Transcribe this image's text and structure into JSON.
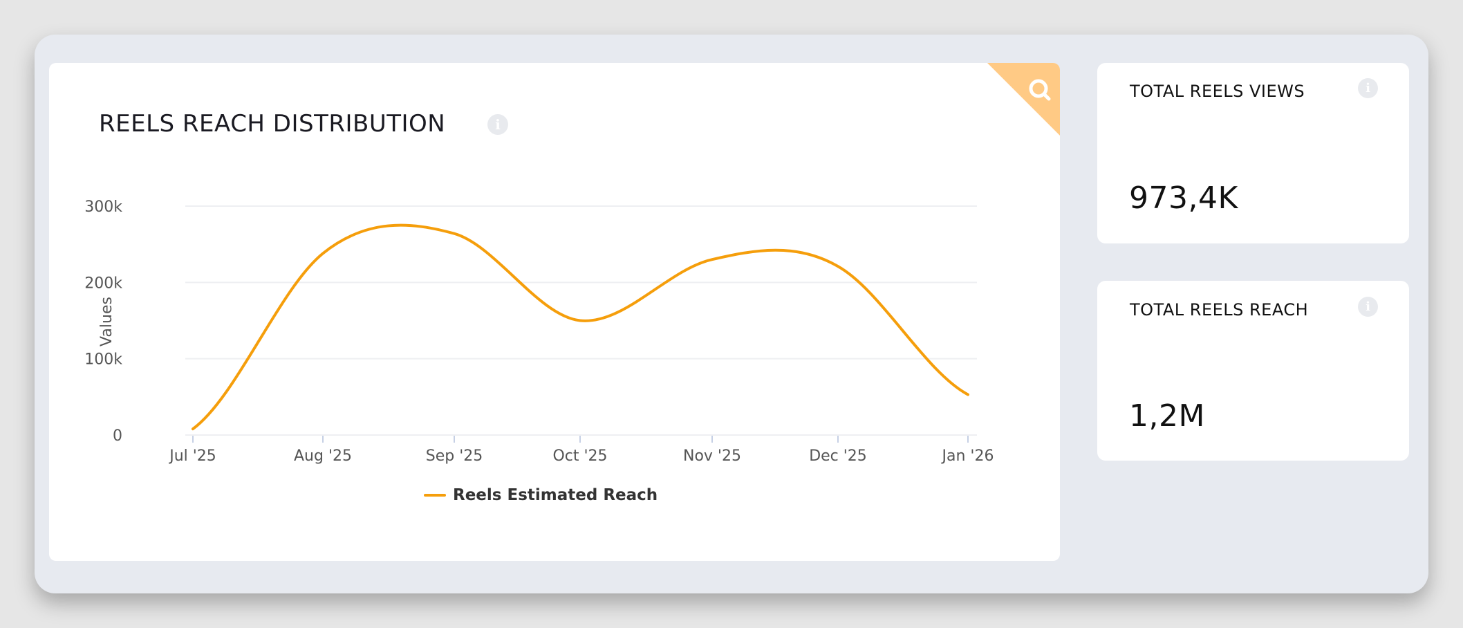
{
  "chart_card": {
    "title": "REELS REACH DISTRIBUTION",
    "info_glyph": "i",
    "corner_icon": "search-icon",
    "corner_color": "#ffca85"
  },
  "stats": [
    {
      "label": "TOTAL REELS VIEWS",
      "value": "973,4K",
      "info_glyph": "i"
    },
    {
      "label": "TOTAL REELS REACH",
      "value": "1,2M",
      "info_glyph": "i"
    }
  ],
  "colors": {
    "series": "#f59e0b",
    "grid": "#eeeff2",
    "tick": "#c6d0e5",
    "axis_text": "#555555"
  },
  "chart_data": {
    "type": "line",
    "title": "REELS REACH DISTRIBUTION",
    "xlabel": "",
    "ylabel": "Values",
    "categories": [
      "Jul '25",
      "Aug '25",
      "Sep '25",
      "Oct '25",
      "Nov '25",
      "Dec '25",
      "Jan '26"
    ],
    "series": [
      {
        "name": "Reels Estimated Reach",
        "values": [
          8000,
          238000,
          264000,
          150000,
          230000,
          221000,
          53000
        ],
        "color": "#f59e0b"
      }
    ],
    "yticks": [
      0,
      100000,
      200000,
      300000
    ],
    "ytick_labels": [
      "0",
      "100k",
      "200k",
      "300k"
    ],
    "ylim": [
      0,
      300000
    ],
    "grid": true,
    "legend_position": "bottom",
    "smooth": true
  }
}
